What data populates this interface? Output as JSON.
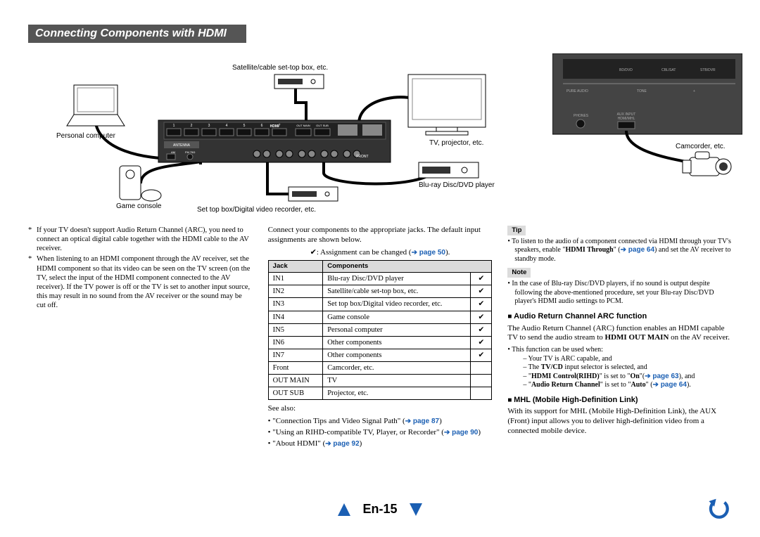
{
  "sectionTitle": "Connecting Components with HDMI",
  "diagram": {
    "labels": {
      "satBox": "Satellite/cable set-top box, etc.",
      "pc": "Personal computer",
      "game": "Game console",
      "setTop": "Set top box/Digital video recorder, etc.",
      "tv": "TV, projector, etc.",
      "bluray": "Blu-ray Disc/DVD player",
      "camcorder": "Camcorder, etc."
    },
    "rearLabels": [
      "1",
      "2",
      "3",
      "4",
      "5",
      "6",
      "7"
    ],
    "rearText": {
      "hdmi": "HDMI",
      "antenna": "ANTENNA",
      "am": "AM",
      "fm": "FM 75Ω"
    },
    "frontLabels": [
      "BD/DVD",
      "CBL/SAT",
      "STB/DVR",
      "PHONES",
      "AUX INPUT HDMI/MHL"
    ]
  },
  "col1": {
    "note1": "If your TV doesn't support Audio Return Channel (ARC), you need to connect an optical digital cable together with the HDMI cable to the AV receiver.",
    "note2": "When listening to an HDMI component through the AV receiver, set the HDMI component so that its video can be seen on the TV screen (on the TV, select the input of the HDMI component connected to the AV receiver). If the TV power is off or the TV is set to another input source, this may result in no sound from the AV receiver or the sound may be cut off."
  },
  "col2": {
    "intro": "Connect your components to the appropriate jacks. The default input assignments are shown below.",
    "assignment": "✔: Assignment can be changed (",
    "assignmentPage": "➔ page 50",
    "assignmentEnd": ").",
    "headers": {
      "jack": "Jack",
      "comp": "Components"
    },
    "rows": [
      {
        "jack": "IN1",
        "comp": "Blu-ray Disc/DVD player",
        "chk": "✔"
      },
      {
        "jack": "IN2",
        "comp": "Satellite/cable set-top box, etc.",
        "chk": "✔"
      },
      {
        "jack": "IN3",
        "comp": "Set top box/Digital video recorder, etc.",
        "chk": "✔"
      },
      {
        "jack": "IN4",
        "comp": "Game console",
        "chk": "✔"
      },
      {
        "jack": "IN5",
        "comp": "Personal computer",
        "chk": "✔"
      },
      {
        "jack": "IN6",
        "comp": "Other components",
        "chk": "✔"
      },
      {
        "jack": "IN7",
        "comp": "Other components",
        "chk": "✔"
      },
      {
        "jack": "Front",
        "comp": "Camcorder, etc.",
        "chk": ""
      },
      {
        "jack": "OUT MAIN",
        "comp": "TV",
        "chk": ""
      },
      {
        "jack": "OUT SUB",
        "comp": "Projector, etc.",
        "chk": ""
      }
    ],
    "seeAlso": "See also:",
    "seeItems": [
      {
        "text": "\"Connection Tips and Video Signal Path\" (",
        "page": "➔ page 87",
        "end": ")"
      },
      {
        "text": "\"Using an RIHD-compatible TV, Player, or Recorder\" (",
        "page": "➔ page 90",
        "end": ")"
      },
      {
        "text": "\"About HDMI\" (",
        "page": "➔ page 92",
        "end": ")"
      }
    ]
  },
  "col3": {
    "tipLabel": "Tip",
    "tipText1": "To listen to the audio of a component connected via HDMI through your TV's speakers, enable \"",
    "tipBold": "HDMI Through",
    "tipText2": "\" (",
    "tipPage": "➔ page 64",
    "tipText3": ") and set the AV receiver to standby mode.",
    "noteLabel": "Note",
    "noteText": "In the case of Blu-ray Disc/DVD players, if no sound is output despite following the above-mentioned procedure, set your Blu-ray Disc/DVD player's HDMI audio settings to PCM.",
    "arcHead": "Audio Return Channel ARC function",
    "arcBody1": "The Audio Return Channel (ARC) function enables an HDMI capable TV to send the audio stream to ",
    "arcBold": "HDMI OUT MAIN",
    "arcBody2": " on the AV receiver.",
    "arcFn": "This function can be used when:",
    "arcSub1": "Your TV is ARC capable, and",
    "arcSub2_1": "The ",
    "arcSub2_b": "TV/CD",
    "arcSub2_2": " input selector is selected, and",
    "arcSub3_1": "\"",
    "arcSub3_b": "HDMI Control(RIHD)",
    "arcSub3_2": "\" is set to \"",
    "arcSub3_b2": "On",
    "arcSub3_3": "\"(",
    "arcSub3_p": "➔ page 63",
    "arcSub3_4": "), and",
    "arcSub4_1": "\"",
    "arcSub4_b": "Audio Return Channel",
    "arcSub4_2": "\" is set to \"",
    "arcSub4_b2": "Auto",
    "arcSub4_3": "\" (",
    "arcSub4_p": "➔ page 64",
    "arcSub4_4": ").",
    "mhlHead": "MHL (Mobile High-Definition Link)",
    "mhlBody": "With its support for MHL (Mobile High-Definition Link), the AUX (Front) input allows you to deliver high-definition video from a connected mobile device."
  },
  "pageNum": "En-15",
  "colors": {
    "link": "#1b5fb3",
    "headerBg": "#555555",
    "tableHdr": "#dcdcdc",
    "border": "#000000"
  }
}
